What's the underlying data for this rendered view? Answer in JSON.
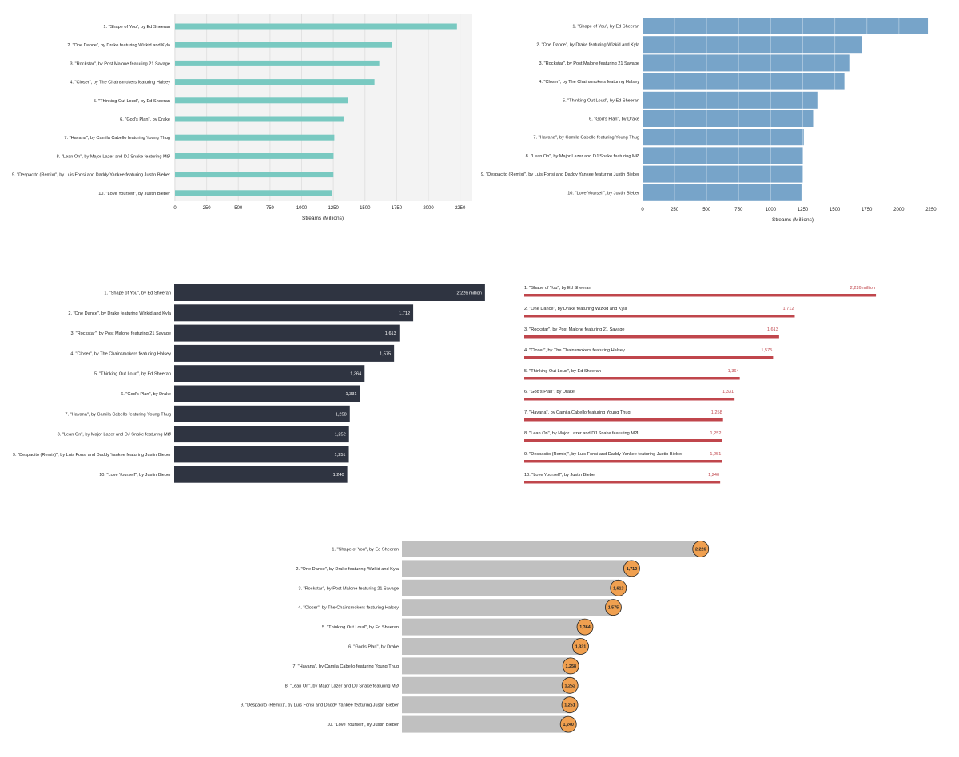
{
  "colors": {
    "teal": "#79c9c1",
    "teal_bg": "#f3f3f3",
    "blue": "#77a4c9",
    "dark": "#2f3441",
    "red": "#c0464c",
    "grey": "#c0c0c0",
    "orange": "#f0a050"
  },
  "chart_data": [
    {
      "type": "bar",
      "style": "thin teal bars on light grey panel with vertical gridlines",
      "categories": [
        "1. \"Shape of You\", by Ed Sheeran",
        "2. \"One Dance\", by Drake featuring Wizkid and Kyla",
        "3. \"Rockstar\", by Post Malone featuring 21 Savage",
        "4. \"Closer\", by The Chainsmokers featuring Halsey",
        "5. \"Thinking Out Loud\", by Ed Sheeran",
        "6. \"God's Plan\", by Drake",
        "7. \"Havana\", by Camila Cabello featuring Young Thug",
        "8. \"Lean On\", by Major Lazer and DJ Snake featuring MØ",
        "9. \"Despacito (Remix)\", by Luis Fonsi and Daddy Yankee featuring Justin Bieber",
        "10. \"Love Yourself\", by Justin Bieber"
      ],
      "values": [
        2226,
        1712,
        1613,
        1575,
        1364,
        1331,
        1258,
        1252,
        1251,
        1240
      ],
      "xlabel": "Streams (Millions)",
      "xticks": [
        "0",
        "250",
        "500",
        "750",
        "1000",
        "1250",
        "1500",
        "1750",
        "2000",
        "2250"
      ],
      "xlim": [
        0,
        2340
      ],
      "grid": true
    },
    {
      "type": "bar",
      "style": "wide blue bars with white vertical gridlines",
      "categories": [
        "1. \"Shape of You\", by Ed Sheeran",
        "2. \"One Dance\", by Drake featuring Wizkid and Kyla",
        "3. \"Rockstar\", by Post Malone featuring 21 Savage",
        "4. \"Closer\", by The Chainsmokers featuring Halsey",
        "5. \"Thinking Out Loud\", by Ed Sheeran",
        "6. \"God's Plan\", by Drake",
        "7. \"Havana\", by Camila Cabello featuring Young Thug",
        "8. \"Lean On\", by Major Lazer and DJ Snake featuring MØ",
        "9. \"Despacito (Remix)\", by Luis Fonsi and Daddy Yankee featuring Justin Bieber",
        "10. \"Love Yourself\", by Justin Bieber"
      ],
      "values": [
        2226,
        1712,
        1613,
        1575,
        1364,
        1331,
        1258,
        1252,
        1251,
        1240
      ],
      "xlabel": "Streams (Millions)",
      "xticks": [
        "0",
        "250",
        "500",
        "750",
        "1000",
        "1250",
        "1500",
        "1750",
        "2000",
        "2250"
      ],
      "xlim": [
        0,
        2240
      ],
      "grid": true
    },
    {
      "type": "bar",
      "style": "dark bars with value labels inside bar end",
      "categories": [
        "1. \"Shape of You\", by Ed Sheeran",
        "2. \"One Dance\", by Drake featuring Wizkid and Kyla",
        "3. \"Rockstar\", by Post Malone featuring 21 Savage",
        "4. \"Closer\", by The Chainsmokers featuring Halsey",
        "5. \"Thinking Out Loud\", by Ed Sheeran",
        "6. \"God's Plan\", by Drake",
        "7. \"Havana\", by Camila Cabello featuring Young Thug",
        "8. \"Lean On\", by Major Lazer and DJ Snake featuring MØ",
        "9. \"Despacito (Remix)\", by Luis Fonsi and Daddy Yankee featuring Justin Bieber",
        "10. \"Love Yourself\", by Justin Bieber"
      ],
      "values": [
        2226,
        1712,
        1613,
        1575,
        1364,
        1331,
        1258,
        1252,
        1251,
        1240
      ],
      "value_labels": [
        "2,226 million",
        "1,712",
        "1,613",
        "1,575",
        "1,364",
        "1,331",
        "1,258",
        "1,252",
        "1,251",
        "1,240"
      ],
      "grid": false
    },
    {
      "type": "bar",
      "style": "thin red bars with label above each bar and value at bar end",
      "categories": [
        "1. \"Shape of You\", by Ed Sheeran",
        "2. \"One Dance\", by Drake featuring Wizkid and Kyla",
        "3. \"Rockstar\", by Post Malone featuring 21 Savage",
        "4. \"Closer\", by The Chainsmokers featuring Halsey",
        "5. \"Thinking Out Loud\", by Ed Sheeran",
        "6. \"God's Plan\", by Drake",
        "7. \"Havana\", by Camila Cabello featuring Young Thug",
        "8. \"Lean On\", by Major Lazer and DJ Snake featuring MØ",
        "9. \"Despacito (Remix)\", by Luis Fonsi and Daddy Yankee featuring Justin Bieber",
        "10. \"Love Yourself\", by Justin Bieber"
      ],
      "values": [
        2226,
        1712,
        1613,
        1575,
        1364,
        1331,
        1258,
        1252,
        1251,
        1240
      ],
      "value_labels": [
        "2,226 million",
        "1,712",
        "1,613",
        "1,575",
        "1,364",
        "1,331",
        "1,258",
        "1,252",
        "1,251",
        "1,240"
      ],
      "grid": false
    },
    {
      "type": "bar",
      "style": "grey bars with orange circle value markers at bar end",
      "categories": [
        "1. \"Shape of You\", by Ed Sheeran",
        "2. \"One Dance\", by Drake featuring Wizkid and Kyla",
        "3. \"Rockstar\", by Post Malone featuring 21 Savage",
        "4. \"Closer\", by The Chainsmokers featuring Halsey",
        "5. \"Thinking Out Loud\", by Ed Sheeran",
        "6. \"God's Plan\", by Drake",
        "7. \"Havana\", by Camila Cabello featuring Young Thug",
        "8. \"Lean On\", by Major Lazer and DJ Snake featuring MØ",
        "9. \"Despacito (Remix)\", by Luis Fonsi and Daddy Yankee featuring Justin Bieber",
        "10. \"Love Yourself\", by Justin Bieber"
      ],
      "values": [
        2226,
        1712,
        1613,
        1575,
        1364,
        1331,
        1258,
        1252,
        1251,
        1240
      ],
      "value_labels": [
        "2,226",
        "1,712",
        "1,613",
        "1,575",
        "1,364",
        "1,331",
        "1,258",
        "1,252",
        "1,251",
        "1,240"
      ],
      "grid": false
    }
  ]
}
